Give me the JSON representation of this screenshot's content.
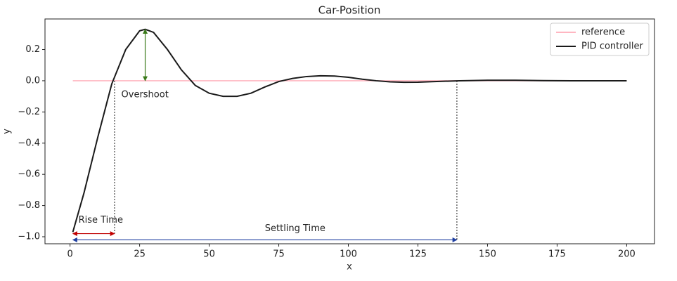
{
  "chart_data": {
    "type": "line",
    "title": "Car-Position",
    "x_label": "x",
    "y_label": "y",
    "xlim": [
      -9,
      210
    ],
    "ylim": [
      -1.045,
      0.396
    ],
    "xticks": [
      0,
      25,
      50,
      75,
      100,
      125,
      150,
      175,
      200
    ],
    "yticks": [
      {
        "value": -1.0,
        "label": "−1.0"
      },
      {
        "value": -0.8,
        "label": "−0.8"
      },
      {
        "value": -0.6,
        "label": "−0.6"
      },
      {
        "value": -0.4,
        "label": "−0.4"
      },
      {
        "value": -0.2,
        "label": "−0.2"
      },
      {
        "value": 0,
        "label": "0.0"
      },
      0.2
    ],
    "legend": "upper right",
    "series": [
      {
        "name": "reference",
        "color": "#ffb6c1",
        "x": [
          1,
          200
        ],
        "values": [
          0,
          0
        ]
      },
      {
        "name": "PID controller",
        "color": "#1a1a1a",
        "x": [
          1,
          5,
          10,
          15,
          20,
          25,
          27,
          30,
          35,
          40,
          45,
          50,
          55,
          60,
          65,
          70,
          75,
          80,
          85,
          90,
          95,
          100,
          105,
          110,
          115,
          120,
          125,
          130,
          140,
          150,
          160,
          170,
          180,
          200
        ],
        "values": [
          -0.97,
          -0.72,
          -0.36,
          -0.02,
          0.2,
          0.32,
          0.33,
          0.31,
          0.2,
          0.07,
          -0.03,
          -0.08,
          -0.1,
          -0.1,
          -0.08,
          -0.04,
          -0.005,
          0.015,
          0.027,
          0.032,
          0.03,
          0.022,
          0.01,
          0.0,
          -0.007,
          -0.01,
          -0.009,
          -0.006,
          0.0,
          0.003,
          0.003,
          0.001,
          0.0,
          0.0
        ]
      }
    ],
    "annotations": [
      {
        "text": "Overshoot",
        "color": "#3a7a1a",
        "x": [
          27,
          27
        ],
        "y": [
          0,
          0.33
        ]
      },
      {
        "text": "Rise Time",
        "color": "#c00000",
        "x": [
          1,
          16
        ],
        "y": [
          -0.98,
          -0.98
        ]
      },
      {
        "text": "Settling Time",
        "color": "#1f3fa0",
        "x": [
          1,
          139
        ],
        "y": [
          -1.02,
          -1.02
        ]
      }
    ]
  }
}
